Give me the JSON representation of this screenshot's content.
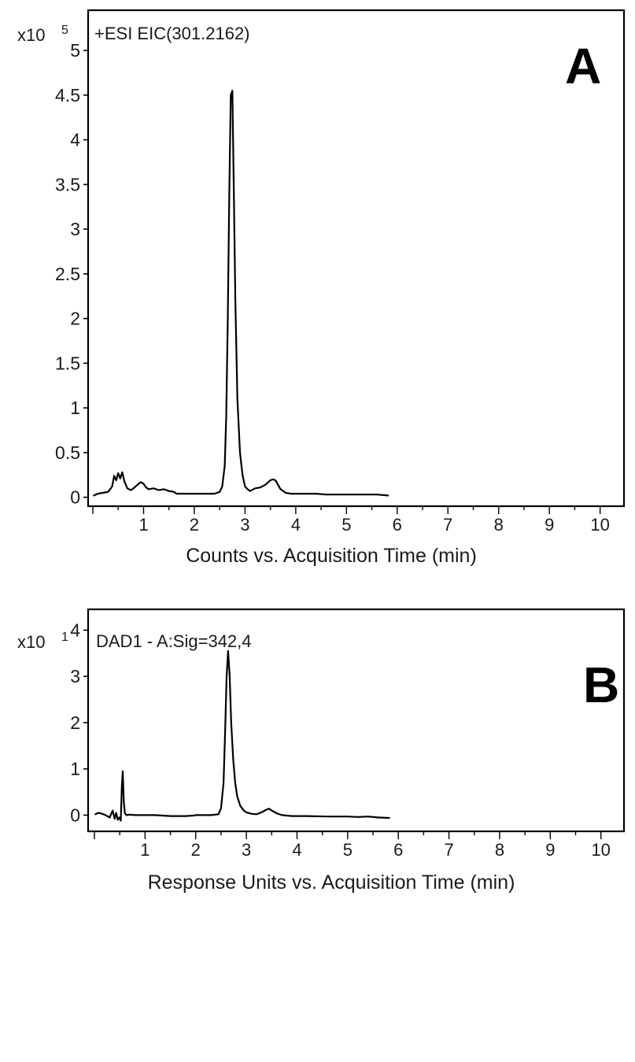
{
  "chart_data": [
    {
      "type": "line",
      "panel_label": "A",
      "signal_label": "+ESI  EIC(301.2162)",
      "y_multiplier": "x10",
      "y_exponent": "5",
      "xlabel": "Counts vs. Acquisition Time (min)",
      "xlim": [
        0,
        10.3
      ],
      "ylim": [
        -0.1,
        5.45
      ],
      "xticks": [
        1,
        2,
        3,
        4,
        5,
        6,
        7,
        8,
        9,
        10
      ],
      "yticks": [
        0,
        0.5,
        1,
        1.5,
        2,
        2.5,
        3,
        3.5,
        4,
        4.5,
        5
      ],
      "ytick_labels": [
        "0",
        "0.5",
        "1",
        "1.5",
        "2",
        "2.5",
        "3",
        "3.5",
        "4",
        "4.5",
        "5"
      ],
      "grid": false,
      "series": [
        {
          "x": [
            0.02,
            0.1,
            0.2,
            0.3,
            0.38,
            0.42,
            0.46,
            0.5,
            0.54,
            0.58,
            0.62,
            0.68,
            0.75,
            0.82,
            0.9,
            0.95,
            1.0,
            1.05,
            1.1,
            1.2,
            1.3,
            1.4,
            1.5,
            1.6,
            1.65,
            1.7,
            1.8,
            2.0,
            2.2,
            2.4,
            2.5,
            2.55,
            2.6,
            2.63,
            2.66,
            2.69,
            2.72,
            2.75,
            2.78,
            2.81,
            2.85,
            2.9,
            2.95,
            3.0,
            3.05,
            3.1,
            3.2,
            3.3,
            3.4,
            3.5,
            3.55,
            3.6,
            3.65,
            3.7,
            3.8,
            3.9,
            4.0,
            4.2,
            4.4,
            4.6,
            4.8,
            5.0,
            5.2,
            5.4,
            5.6,
            5.82
          ],
          "y": [
            0.02,
            0.04,
            0.05,
            0.06,
            0.12,
            0.24,
            0.19,
            0.27,
            0.21,
            0.28,
            0.18,
            0.1,
            0.08,
            0.11,
            0.15,
            0.17,
            0.15,
            0.11,
            0.09,
            0.1,
            0.08,
            0.09,
            0.07,
            0.06,
            0.04,
            0.04,
            0.04,
            0.04,
            0.04,
            0.04,
            0.06,
            0.12,
            0.35,
            0.9,
            2.0,
            3.4,
            4.5,
            4.55,
            3.4,
            2.2,
            1.1,
            0.5,
            0.25,
            0.12,
            0.09,
            0.07,
            0.1,
            0.11,
            0.14,
            0.19,
            0.2,
            0.19,
            0.14,
            0.09,
            0.05,
            0.04,
            0.04,
            0.04,
            0.04,
            0.03,
            0.03,
            0.03,
            0.03,
            0.03,
            0.03,
            0.02
          ]
        }
      ]
    },
    {
      "type": "line",
      "panel_label": "B",
      "signal_label": "DAD1 - A:Sig=342,4",
      "y_multiplier": "x10",
      "y_exponent": "1",
      "xlabel": "Response Units vs. Acquisition Time (min)",
      "xlim": [
        0,
        10.3
      ],
      "ylim": [
        -0.35,
        4.45
      ],
      "xticks": [
        1,
        2,
        3,
        4,
        5,
        6,
        7,
        8,
        9,
        10
      ],
      "yticks": [
        0,
        1,
        2,
        3,
        4
      ],
      "ytick_labels": [
        "0",
        "1",
        "2",
        "3",
        "4"
      ],
      "grid": false,
      "series": [
        {
          "x": [
            0.02,
            0.08,
            0.15,
            0.22,
            0.3,
            0.36,
            0.4,
            0.43,
            0.46,
            0.49,
            0.52,
            0.54,
            0.56,
            0.58,
            0.6,
            0.63,
            0.7,
            0.8,
            1.0,
            1.2,
            1.5,
            1.8,
            1.95,
            2.0,
            2.1,
            2.3,
            2.45,
            2.5,
            2.55,
            2.58,
            2.61,
            2.64,
            2.67,
            2.7,
            2.74,
            2.78,
            2.82,
            2.88,
            2.95,
            3.0,
            3.1,
            3.2,
            3.3,
            3.4,
            3.45,
            3.5,
            3.6,
            3.7,
            3.9,
            4.2,
            4.6,
            5.0,
            5.2,
            5.4,
            5.6,
            5.82
          ],
          "y": [
            0.02,
            0.05,
            0.03,
            0.0,
            -0.05,
            0.1,
            -0.08,
            0.05,
            -0.1,
            -0.05,
            -0.12,
            0.6,
            0.95,
            0.3,
            0.05,
            0.0,
            0.01,
            0.0,
            0.0,
            0.0,
            -0.02,
            -0.02,
            -0.01,
            0.0,
            0.0,
            0.0,
            0.02,
            0.15,
            0.7,
            1.8,
            3.0,
            3.55,
            3.0,
            2.0,
            1.2,
            0.7,
            0.4,
            0.2,
            0.1,
            0.06,
            0.03,
            0.02,
            0.06,
            0.12,
            0.14,
            0.1,
            0.04,
            0.0,
            -0.02,
            -0.02,
            -0.03,
            -0.03,
            -0.04,
            -0.03,
            -0.05,
            -0.06
          ]
        }
      ]
    }
  ]
}
